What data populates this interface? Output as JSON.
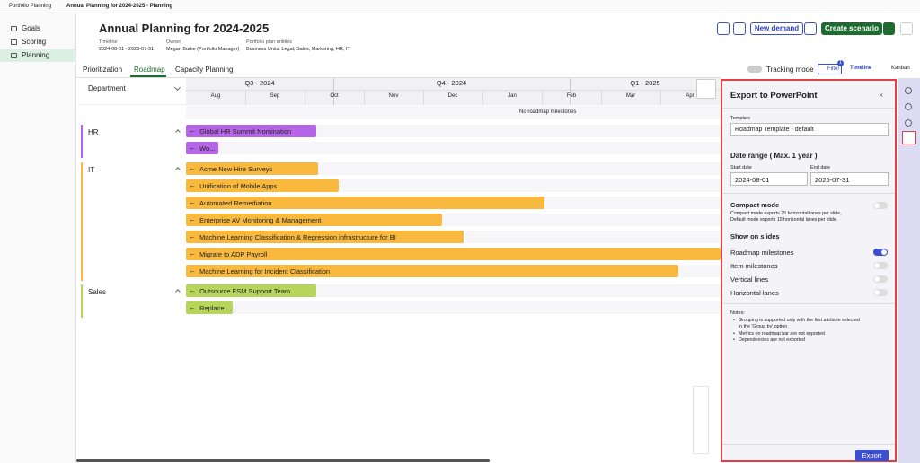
{
  "breadcrumb": [
    "Portfolio Planning",
    "Annual Planning for 2024-2025 - Planning"
  ],
  "sidebar": [
    "Goals",
    "Scoring",
    "Planning"
  ],
  "header": {
    "title": "Annual Planning for 2024-2025",
    "meta": [
      {
        "label": "Timeline",
        "value": "2024-08-01 - 2025-07-31"
      },
      {
        "label": "Owner",
        "value": "Megan Burke (Portfolio Manager)"
      },
      {
        "label": "Portfolio plan entities",
        "value": "Business Units: Legal, Sales, Marketing, HR, IT"
      }
    ],
    "new_demand": "New demand",
    "create_scenario": "Create scenario"
  },
  "tabs": [
    "Prioritization",
    "Roadmap",
    "Capacity Planning"
  ],
  "toolbar": {
    "tracking": "Tracking mode",
    "filter": "Filter",
    "filter_count": "1",
    "timeline": "Timeline",
    "kanban": "Kanban"
  },
  "roadmap": {
    "department_label": "Department",
    "quarters": [
      "Q3 - 2024",
      "Q4 - 2024",
      "Q1 - 2025"
    ],
    "months": [
      "Aug",
      "Sep",
      "Oct",
      "Nov",
      "Dec",
      "Jan",
      "Feb",
      "Mar",
      "Apr"
    ],
    "no_milestones": "No roadmap milestones",
    "groups": [
      {
        "name": "HR",
        "items": [
          "Global HR Summit Nomination",
          "Wo..."
        ]
      },
      {
        "name": "IT",
        "items": [
          "Acme New Hire Surveys",
          "Unification of Mobile Apps",
          "Automated Remediation",
          "Enterprise AV Monitoring & Management",
          "Machine Learning Classification & Regression infrastructure for BI",
          "Migrate to ADP Payroll",
          "Machine Learning for Incident Classification"
        ]
      },
      {
        "name": "Sales",
        "items": [
          "Outsource FSM Support Team",
          "Replace ..."
        ]
      }
    ]
  },
  "panel": {
    "title": "Export to PowerPoint",
    "template_label": "Template",
    "template_value": "Roadmap Template - default",
    "date_range_title": "Date range ( Max. 1 year )",
    "start_label": "Start date",
    "start_value": "2024-08-01",
    "end_label": "End date",
    "end_value": "2025-07-31",
    "compact_title": "Compact mode",
    "compact_on": false,
    "compact_desc": "Compact mode exports 25 horizontal lanes per slide, Default mode exports 15 horizontal lanes per slide.",
    "show_title": "Show on slides",
    "toggles": [
      {
        "label": "Roadmap milestones",
        "on": true
      },
      {
        "label": "Item milestones",
        "on": false
      },
      {
        "label": "Vertical lines",
        "on": false
      },
      {
        "label": "Horizontal lanes",
        "on": false
      }
    ],
    "notes_title": "Notes:",
    "notes": [
      "Grouping is supported only with the first attribute selected in the 'Group by' option",
      "Metrics on roadmap bar are not exported",
      "Dependencies are not exported"
    ],
    "export": "Export"
  }
}
